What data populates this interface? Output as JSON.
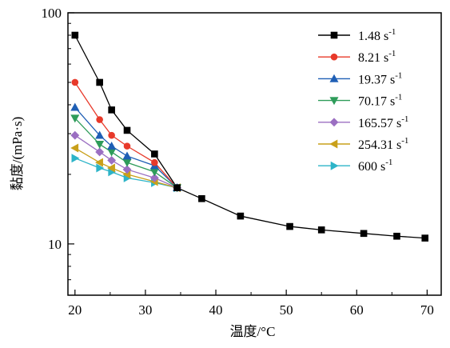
{
  "chart_data": {
    "type": "line",
    "xlabel": "温度/°C",
    "ylabel": "黏度/(mPa·s)",
    "xlim": [
      19,
      72
    ],
    "ylim": [
      6,
      100
    ],
    "y_scale": "log",
    "x_ticks": [
      20,
      30,
      40,
      50,
      60,
      70
    ],
    "y_ticks": [
      10,
      100
    ],
    "grid": false,
    "legend_position": "top-right",
    "series": [
      {
        "name": "1.48 s",
        "name_sup": "-1",
        "color": "#000000",
        "marker": "square",
        "x": [
          20,
          23.5,
          25.2,
          27.4,
          31.3,
          34.5,
          38,
          43.5,
          50.5,
          55,
          61,
          65.7,
          69.7
        ],
        "y": [
          80,
          50,
          38,
          31,
          24.5,
          17.5,
          15.7,
          13.2,
          11.9,
          11.5,
          11.1,
          10.8,
          10.6
        ]
      },
      {
        "name": "8.21 s",
        "name_sup": "-1",
        "color": "#e8392a",
        "marker": "circle",
        "x": [
          20,
          23.5,
          25.2,
          27.4,
          31.3,
          34.5
        ],
        "y": [
          50,
          34.5,
          29.5,
          26.5,
          22.5,
          17.5
        ]
      },
      {
        "name": "19.37 s",
        "name_sup": "-1",
        "color": "#1f5fb5",
        "marker": "triangle-up",
        "x": [
          20,
          23.5,
          25.2,
          27.4,
          31.3,
          34.5
        ],
        "y": [
          39,
          29.5,
          26.5,
          24,
          21.8,
          17.5
        ]
      },
      {
        "name": "70.17 s",
        "name_sup": "-1",
        "color": "#2e9c5a",
        "marker": "triangle-down",
        "x": [
          20,
          23.5,
          25.2,
          27.4,
          31.3,
          34.5
        ],
        "y": [
          35,
          27,
          25,
          22.5,
          20.5,
          17.5
        ]
      },
      {
        "name": "165.57 s",
        "name_sup": "-1",
        "color": "#9b6fc2",
        "marker": "diamond",
        "x": [
          20,
          23.5,
          25.2,
          27.4,
          31.3,
          34.5
        ],
        "y": [
          29.5,
          25,
          23,
          21,
          19.3,
          17.5
        ]
      },
      {
        "name": "254.31 s",
        "name_sup": "-1",
        "color": "#c9a01a",
        "marker": "triangle-left",
        "x": [
          20,
          23.5,
          25.2,
          27.4,
          31.3,
          34.5
        ],
        "y": [
          26,
          22.5,
          21.3,
          20,
          18.6,
          17.5
        ]
      },
      {
        "name": "600 s",
        "name_sup": "-1",
        "color": "#2db4c8",
        "marker": "triangle-right",
        "x": [
          20,
          23.5,
          25.2,
          27.4,
          31.3,
          34.5
        ],
        "y": [
          23.5,
          21.3,
          20.5,
          19.3,
          18.4,
          17.5
        ]
      }
    ]
  }
}
